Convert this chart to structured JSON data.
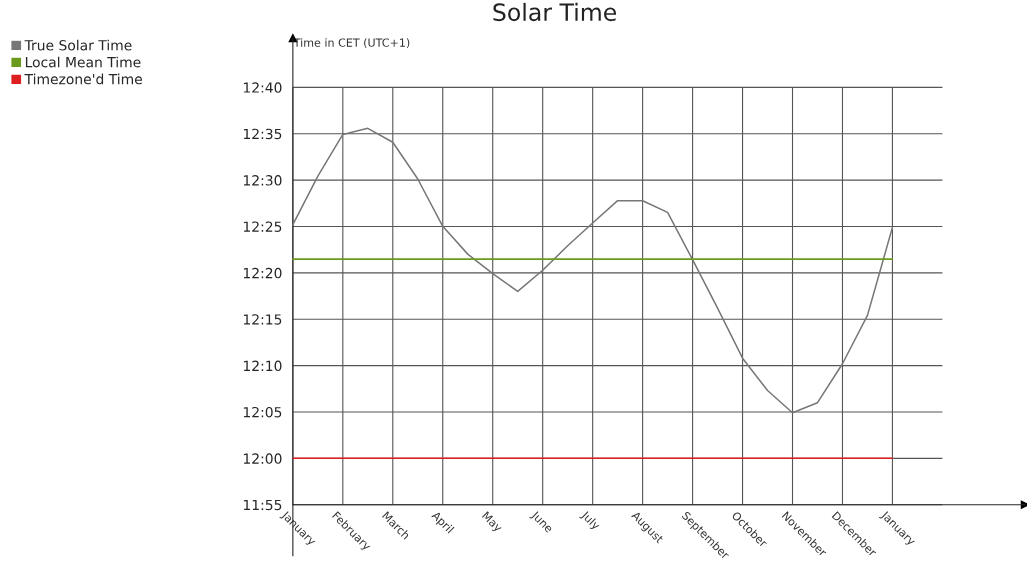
{
  "chart_data": {
    "type": "line",
    "title": "Solar Time",
    "ylabel": "Time in CET (UTC+1)",
    "categories": [
      "January",
      null,
      "February",
      null,
      "March",
      null,
      "April",
      null,
      "May",
      null,
      "June",
      null,
      "July",
      null,
      "August",
      null,
      "September",
      null,
      "October",
      null,
      "November",
      null,
      "December",
      null,
      "January"
    ],
    "series": [
      {
        "name": "True Solar Time",
        "color": "#777777",
        "values": [
          12.42,
          12.507,
          12.582,
          12.593,
          12.568,
          12.502,
          12.417,
          12.367,
          12.332,
          12.3,
          12.338,
          12.382,
          12.423,
          12.463,
          12.463,
          12.442,
          12.357,
          12.27,
          12.18,
          12.122,
          12.082,
          12.1,
          12.17,
          12.257,
          12.415
        ]
      },
      {
        "name": "Local Mean Time",
        "color": "#6b9a1e",
        "values": [
          12.358,
          12.358,
          12.358,
          12.358,
          12.358,
          12.358,
          12.358,
          12.358,
          12.358,
          12.358,
          12.358,
          12.358,
          12.358,
          12.358,
          12.358,
          12.358,
          12.358,
          12.358,
          12.358,
          12.358,
          12.358,
          12.358,
          12.358,
          12.358,
          12.358
        ]
      },
      {
        "name": "Timezone'd Time",
        "color": "#dd1f1f",
        "values": [
          12.0,
          12.0,
          12.0,
          12.0,
          12.0,
          12.0,
          12.0,
          12.0,
          12.0,
          12.0,
          12.0,
          12.0,
          12.0,
          12.0,
          12.0,
          12.0,
          12.0,
          12.0,
          12.0,
          12.0,
          12.0,
          12.0,
          12.0,
          12.0,
          12.0
        ]
      }
    ],
    "ylim": [
      11.825,
      12.755
    ],
    "yticks": [
      {
        "value": 11.91667,
        "label": "11:55"
      },
      {
        "value": 12.0,
        "label": "12:00"
      },
      {
        "value": 12.08333,
        "label": "12:05"
      },
      {
        "value": 12.16667,
        "label": "12:10"
      },
      {
        "value": 12.25,
        "label": "12:15"
      },
      {
        "value": 12.33333,
        "label": "12:20"
      },
      {
        "value": 12.41667,
        "label": "12:25"
      },
      {
        "value": 12.5,
        "label": "12:30"
      },
      {
        "value": 12.58333,
        "label": "12:35"
      },
      {
        "value": 12.66667,
        "label": "12:40"
      }
    ],
    "grid": true,
    "legend": "top left",
    "marker": "none",
    "line_style": "solid"
  }
}
